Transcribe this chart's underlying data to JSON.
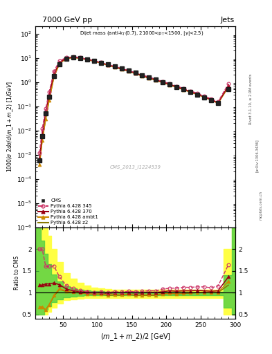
{
  "title_top": "7000 GeV pp",
  "title_right": "Jets",
  "annotation": "Dijet mass (anti-k_{T}(0.7), 21000<p_{T}<1500, |y|<2.5)",
  "watermark": "CMS_2013_I1224539",
  "ylabel_main": "1000/σ 2dσ/d(m_1 + m_2) [1/GeV]",
  "ylabel_ratio": "Ratio to CMS",
  "xlabel": "(m_1 + m_2) / 2 [GeV]",
  "rivet_label": "Rivet 3.1.10, ≥ 2.9M events",
  "arxiv_label": "[arXiv:1306.3436]",
  "mcplots_label": "mcplots.cern.ch",
  "cms_x": [
    16,
    20,
    25,
    30,
    37,
    45,
    55,
    65,
    75,
    85,
    95,
    105,
    115,
    125,
    135,
    145,
    155,
    165,
    175,
    185,
    195,
    205,
    215,
    225,
    235,
    245,
    255,
    265,
    275,
    290
  ],
  "cms_y": [
    0.0006,
    0.006,
    0.05,
    0.25,
    1.8,
    5.5,
    9.2,
    10.4,
    9.9,
    8.8,
    7.8,
    6.4,
    5.4,
    4.4,
    3.7,
    2.95,
    2.42,
    1.93,
    1.56,
    1.27,
    0.99,
    0.79,
    0.63,
    0.5,
    0.39,
    0.31,
    0.24,
    0.185,
    0.135,
    0.53
  ],
  "p345_x": [
    16,
    20,
    25,
    30,
    37,
    45,
    55,
    65,
    75,
    85,
    95,
    105,
    115,
    125,
    135,
    145,
    155,
    165,
    175,
    185,
    195,
    205,
    215,
    225,
    235,
    245,
    255,
    265,
    275,
    290
  ],
  "p345_y": [
    0.0012,
    0.012,
    0.08,
    0.4,
    2.9,
    7.5,
    10.7,
    11.3,
    10.4,
    9.0,
    7.8,
    6.5,
    5.4,
    4.5,
    3.75,
    3.05,
    2.48,
    1.98,
    1.62,
    1.32,
    1.07,
    0.87,
    0.69,
    0.56,
    0.435,
    0.35,
    0.27,
    0.205,
    0.155,
    0.87
  ],
  "p370_x": [
    16,
    20,
    25,
    30,
    37,
    45,
    55,
    65,
    75,
    85,
    95,
    105,
    115,
    125,
    135,
    145,
    155,
    165,
    175,
    185,
    195,
    205,
    215,
    225,
    235,
    245,
    255,
    265,
    275,
    290
  ],
  "p370_y": [
    0.0007,
    0.007,
    0.06,
    0.3,
    2.2,
    6.5,
    9.9,
    10.8,
    10.1,
    8.9,
    7.75,
    6.4,
    5.3,
    4.4,
    3.68,
    2.95,
    2.4,
    1.92,
    1.56,
    1.27,
    1.01,
    0.82,
    0.65,
    0.52,
    0.405,
    0.325,
    0.25,
    0.19,
    0.14,
    0.72
  ],
  "pambt1_x": [
    16,
    20,
    25,
    30,
    37,
    45,
    55,
    65,
    75,
    85,
    95,
    105,
    115,
    125,
    135,
    145,
    155,
    165,
    175,
    185,
    195,
    205,
    215,
    225,
    235,
    245,
    255,
    265,
    275,
    290
  ],
  "pambt1_y": [
    0.0004,
    0.004,
    0.03,
    0.18,
    1.7,
    6.0,
    9.5,
    10.5,
    9.9,
    8.6,
    7.5,
    6.2,
    5.1,
    4.2,
    3.5,
    2.85,
    2.28,
    1.82,
    1.48,
    1.2,
    0.965,
    0.78,
    0.615,
    0.495,
    0.39,
    0.31,
    0.24,
    0.185,
    0.135,
    0.67
  ],
  "pz2_x": [
    16,
    20,
    25,
    30,
    37,
    45,
    55,
    65,
    75,
    85,
    95,
    105,
    115,
    125,
    135,
    145,
    155,
    165,
    175,
    185,
    195,
    205,
    215,
    225,
    235,
    245,
    255,
    265,
    275,
    290
  ],
  "pz2_y": [
    0.0004,
    0.004,
    0.03,
    0.18,
    1.65,
    5.9,
    9.4,
    10.4,
    9.8,
    8.55,
    7.45,
    6.15,
    5.05,
    4.15,
    3.47,
    2.82,
    2.26,
    1.8,
    1.46,
    1.19,
    0.955,
    0.775,
    0.61,
    0.49,
    0.385,
    0.31,
    0.24,
    0.185,
    0.135,
    0.62
  ],
  "ratio_x": [
    16,
    20,
    25,
    30,
    37,
    45,
    55,
    65,
    75,
    85,
    95,
    105,
    115,
    125,
    135,
    145,
    155,
    165,
    175,
    185,
    195,
    205,
    215,
    225,
    235,
    245,
    255,
    265,
    275,
    290
  ],
  "r345": [
    2.0,
    2.0,
    1.6,
    1.6,
    1.61,
    1.36,
    1.16,
    1.09,
    1.05,
    1.02,
    1.0,
    1.02,
    1.0,
    1.02,
    1.01,
    1.03,
    1.02,
    1.03,
    1.04,
    1.04,
    1.08,
    1.1,
    1.1,
    1.12,
    1.12,
    1.13,
    1.13,
    1.11,
    1.15,
    1.64
  ],
  "r370": [
    1.17,
    1.17,
    1.2,
    1.2,
    1.22,
    1.18,
    1.08,
    1.04,
    1.02,
    1.01,
    0.995,
    1.0,
    0.98,
    1.0,
    0.995,
    1.0,
    0.99,
    0.995,
    1.0,
    1.0,
    1.02,
    1.04,
    1.03,
    1.04,
    1.04,
    1.05,
    1.04,
    1.03,
    1.04,
    1.36
  ],
  "rambt1": [
    0.67,
    0.67,
    0.6,
    0.72,
    0.94,
    1.09,
    1.03,
    1.01,
    1.0,
    0.977,
    0.962,
    0.969,
    0.944,
    0.955,
    0.946,
    0.966,
    0.942,
    0.943,
    0.949,
    0.945,
    0.975,
    0.987,
    0.976,
    0.99,
    1.0,
    1.0,
    1.0,
    1.0,
    1.0,
    1.26
  ],
  "rz2": [
    0.67,
    0.67,
    0.6,
    0.72,
    0.917,
    1.073,
    1.022,
    1.0,
    0.99,
    0.972,
    0.955,
    0.961,
    0.935,
    0.943,
    0.938,
    0.956,
    0.934,
    0.933,
    0.936,
    0.937,
    0.965,
    0.981,
    0.968,
    0.98,
    0.987,
    1.0,
    1.0,
    1.0,
    1.0,
    1.17
  ],
  "band_x": [
    10,
    16,
    20,
    25,
    30,
    37,
    45,
    55,
    65,
    75,
    85,
    95,
    105,
    115,
    125,
    135,
    145,
    155,
    165,
    175,
    185,
    195,
    205,
    215,
    225,
    235,
    245,
    255,
    265,
    275,
    290,
    300
  ],
  "band_yellow_lo": [
    0.5,
    0.5,
    0.5,
    0.5,
    0.55,
    0.65,
    0.75,
    0.82,
    0.85,
    0.86,
    0.87,
    0.87,
    0.87,
    0.87,
    0.87,
    0.87,
    0.87,
    0.87,
    0.87,
    0.87,
    0.87,
    0.87,
    0.87,
    0.87,
    0.87,
    0.87,
    0.87,
    0.87,
    0.87,
    0.87,
    0.5,
    0.5
  ],
  "band_yellow_hi": [
    2.5,
    2.5,
    2.5,
    2.5,
    2.3,
    2.0,
    1.7,
    1.45,
    1.32,
    1.22,
    1.16,
    1.12,
    1.1,
    1.08,
    1.07,
    1.06,
    1.06,
    1.06,
    1.06,
    1.06,
    1.06,
    1.06,
    1.06,
    1.06,
    1.06,
    1.06,
    1.06,
    1.06,
    1.06,
    1.06,
    2.0,
    2.5
  ],
  "band_green_lo": [
    0.5,
    0.5,
    0.5,
    0.6,
    0.68,
    0.78,
    0.85,
    0.89,
    0.91,
    0.92,
    0.93,
    0.93,
    0.93,
    0.93,
    0.93,
    0.93,
    0.93,
    0.93,
    0.93,
    0.93,
    0.93,
    0.93,
    0.93,
    0.93,
    0.93,
    0.93,
    0.93,
    0.93,
    0.93,
    0.93,
    0.65,
    0.5
  ],
  "band_green_hi": [
    2.5,
    2.5,
    2.2,
    1.9,
    1.65,
    1.42,
    1.25,
    1.15,
    1.1,
    1.07,
    1.05,
    1.04,
    1.03,
    1.02,
    1.02,
    1.02,
    1.02,
    1.02,
    1.02,
    1.02,
    1.02,
    1.02,
    1.02,
    1.02,
    1.02,
    1.02,
    1.02,
    1.02,
    1.02,
    1.02,
    1.4,
    2.5
  ],
  "color_cms": "#1a1a1a",
  "color_p345": "#cc3366",
  "color_p370": "#990011",
  "color_ambt1": "#cc8800",
  "color_z2": "#887700",
  "color_yellow": "#ffff44",
  "color_green": "#44cc44",
  "ylim_main": [
    1e-06,
    200.0
  ],
  "xlim": [
    10,
    300
  ],
  "ratio_ylim": [
    0.4,
    2.5
  ],
  "ratio_yticks": [
    0.5,
    1.0,
    1.5,
    2.0
  ]
}
